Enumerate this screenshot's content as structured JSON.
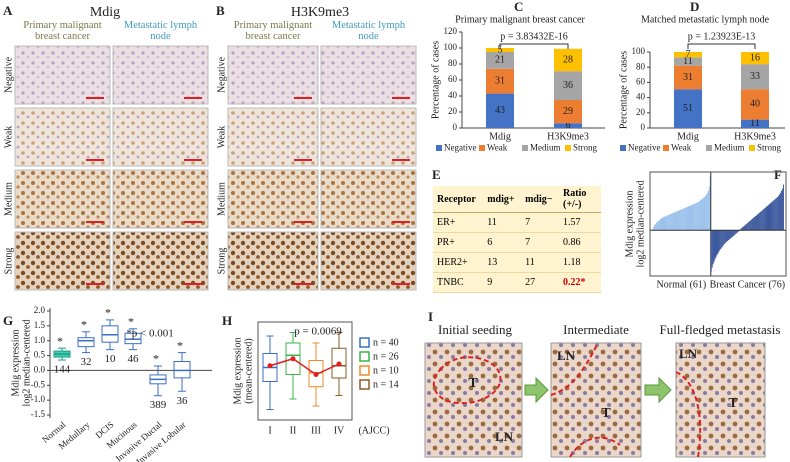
{
  "panel_labels": [
    "A",
    "B",
    "C",
    "D",
    "E",
    "F",
    "G",
    "H",
    "I"
  ],
  "ihc": [
    {
      "title": "Mdig",
      "columns": [
        "Primary malignant breast cancer",
        "Metastatic lymph node"
      ],
      "rows": [
        "Negative",
        "Weak",
        "Medium",
        "Strong"
      ]
    },
    {
      "title": "H3K9me3",
      "columns": [
        "Primary malignant breast cancer",
        "Metastatic lymph node"
      ],
      "rows": [
        "Negative",
        "Weak",
        "Medium",
        "Strong"
      ]
    }
  ],
  "table": {
    "header": [
      "Receptor",
      "mdig+",
      "mdig−",
      "Ratio (+/-)"
    ],
    "rows": [
      [
        "ER+",
        11,
        7,
        1.57
      ],
      [
        "PR+",
        6,
        7,
        0.86
      ],
      [
        "HER2+",
        13,
        11,
        1.18
      ],
      [
        "TNBC",
        9,
        27,
        "0.22*"
      ]
    ]
  },
  "metastasis": {
    "stages": [
      {
        "label": "Initial seeding",
        "regions": [
          "T",
          "LN"
        ]
      },
      {
        "label": "Intermediate",
        "regions": [
          "T",
          "LN"
        ]
      },
      {
        "label": "Full-fledged metastasis",
        "regions": [
          "T",
          "LN"
        ]
      }
    ]
  },
  "chart_data": [
    {
      "type": "stacked_bar",
      "title": "Primary malignant breast cancer",
      "annotation": "p = 3.83432E-16",
      "ylabel": "Percentage of cases",
      "categories": [
        "Mdig",
        "H3K9me3"
      ],
      "series": [
        {
          "name": "Negative",
          "color": "#4472c4",
          "values": [
            43,
            6
          ]
        },
        {
          "name": "Weak",
          "color": "#ed7d31",
          "values": [
            31,
            29
          ]
        },
        {
          "name": "Medium",
          "color": "#a5a5a5",
          "values": [
            21,
            36
          ]
        },
        {
          "name": "Strong",
          "color": "#ffc000",
          "values": [
            5,
            28
          ]
        }
      ],
      "ylim": [
        0,
        120
      ],
      "yticks": [
        0,
        20,
        40,
        60,
        80,
        100,
        120
      ],
      "legend": "bottom"
    },
    {
      "type": "stacked_bar",
      "title": "Matched metastatic lymph node",
      "annotation": "p = 1.23923E-13",
      "ylabel": "Percentage of cases",
      "categories": [
        "Mdig",
        "H3K9me3"
      ],
      "series": [
        {
          "name": "Negative",
          "color": "#4472c4",
          "values": [
            51,
            11
          ]
        },
        {
          "name": "Weak",
          "color": "#ed7d31",
          "values": [
            31,
            40
          ]
        },
        {
          "name": "Medium",
          "color": "#a5a5a5",
          "values": [
            11,
            33
          ]
        },
        {
          "name": "Strong",
          "color": "#ffc000",
          "values": [
            7,
            16
          ]
        }
      ],
      "ylim": [
        0,
        100
      ],
      "yticks": [
        0,
        20,
        40,
        60,
        80,
        100
      ],
      "legend": "bottom"
    },
    {
      "type": "waterfall",
      "ylabel": [
        "Mdig expression",
        "log2 median-centered"
      ],
      "series": [
        {
          "name": "Normal (61)",
          "color": "#8cb8e8",
          "values": [
            0.02,
            0.08,
            0.12,
            0.15,
            0.18,
            0.2,
            0.22,
            0.24,
            0.26,
            0.28,
            0.3,
            0.31,
            0.32,
            0.33,
            0.34,
            0.35,
            0.36,
            0.37,
            0.38,
            0.39,
            0.4,
            0.41,
            0.42,
            0.43,
            0.44,
            0.45,
            0.46,
            0.47,
            0.48,
            0.49,
            0.5,
            0.51,
            0.52,
            0.53,
            0.54,
            0.55,
            0.56,
            0.57,
            0.58,
            0.59,
            0.6,
            0.61,
            0.62,
            0.63,
            0.64,
            0.65,
            0.66,
            0.67,
            0.68,
            0.7,
            0.72,
            0.74,
            0.76,
            0.78,
            0.8,
            0.83,
            0.86,
            0.9,
            0.95,
            1.05,
            1.3
          ]
        },
        {
          "name": "Breast Cancer (76)",
          "color": "#1f3f8f",
          "values": [
            -1.0,
            -0.9,
            -0.82,
            -0.76,
            -0.7,
            -0.65,
            -0.6,
            -0.56,
            -0.52,
            -0.48,
            -0.45,
            -0.42,
            -0.39,
            -0.36,
            -0.33,
            -0.3,
            -0.28,
            -0.26,
            -0.24,
            -0.22,
            -0.2,
            -0.18,
            -0.16,
            -0.14,
            -0.12,
            -0.1,
            -0.08,
            -0.06,
            -0.04,
            -0.02,
            0.02,
            0.04,
            0.06,
            0.08,
            0.1,
            0.12,
            0.14,
            0.16,
            0.18,
            0.2,
            0.22,
            0.24,
            0.26,
            0.28,
            0.3,
            0.32,
            0.34,
            0.36,
            0.38,
            0.4,
            0.42,
            0.44,
            0.46,
            0.48,
            0.5,
            0.52,
            0.54,
            0.56,
            0.58,
            0.6,
            0.62,
            0.64,
            0.66,
            0.68,
            0.7,
            0.72,
            0.74,
            0.76,
            0.78,
            0.8,
            0.83,
            0.86,
            0.9,
            0.95,
            1.0,
            1.1
          ]
        }
      ],
      "ylim": [
        -1.1,
        1.4
      ]
    },
    {
      "type": "box",
      "ylabel": [
        "Mdig expression",
        "log2 median-centered"
      ],
      "annotation": "*p < 0.001",
      "categories": [
        "Normal",
        "Medullary",
        "DCIS",
        "Mucinous",
        "Invasive Ductal",
        "Invasive Lobular"
      ],
      "whisker_low": [
        0.35,
        0.6,
        0.7,
        0.7,
        -0.85,
        -0.7
      ],
      "q1": [
        0.45,
        0.8,
        0.95,
        0.9,
        -0.45,
        -0.25
      ],
      "median": [
        0.55,
        1.0,
        1.2,
        1.05,
        -0.3,
        0.0
      ],
      "q3": [
        0.65,
        1.1,
        1.5,
        1.25,
        -0.15,
        0.3
      ],
      "whisker_high": [
        0.75,
        1.3,
        1.7,
        1.4,
        0.15,
        0.6
      ],
      "n": [
        144,
        32,
        10,
        46,
        389,
        36
      ],
      "markers": [
        "*",
        "*",
        "*",
        "*",
        "*",
        "*"
      ],
      "colors": [
        "#1f9e89",
        "#3b6fc4",
        "#3b6fc4",
        "#3b6fc4",
        "#3b6fc4",
        "#3b6fc4"
      ],
      "fills": [
        "#3fcfb0",
        "#ffffff",
        "#ffffff",
        "#ffffff",
        "#ffffff",
        "#ffffff"
      ],
      "ylim": [
        -1.6,
        2.1
      ],
      "yticks": [
        {
          "value": 2,
          "label": "2.0"
        },
        1.5,
        {
          "value": 1,
          "label": "1.0"
        },
        0.5,
        {
          "value": 0,
          "label": "0.0"
        },
        -0.5,
        {
          "value": -1,
          "label": "-1.0"
        },
        -1.5
      ]
    },
    {
      "type": "box",
      "ylabel": [
        "Mdig expression",
        "(mean-centered)"
      ],
      "annotation": "p = 0.0069",
      "xlabel": "(AJCC)",
      "categories": [
        "I",
        "II",
        "III",
        "IV"
      ],
      "legend": [
        "n = 40",
        "n = 26",
        "n = 10",
        "n = 14"
      ],
      "colors": [
        "#3b6fc4",
        "#3cb44b",
        "#f08a24",
        "#8b5a2b"
      ],
      "fills": [
        "#ffffff",
        "#ffffff",
        "#ffffff",
        "#ffffff"
      ],
      "whisker_low": [
        -1.0,
        -0.7,
        -0.9,
        -0.6
      ],
      "q1": [
        -0.2,
        0.0,
        -0.35,
        -0.1
      ],
      "median": [
        0.2,
        0.55,
        0.05,
        0.25
      ],
      "q3": [
        0.6,
        0.9,
        0.4,
        0.75
      ],
      "whisker_high": [
        1.1,
        1.2,
        0.9,
        1.2
      ],
      "mean": [
        0.25,
        0.45,
        0.0,
        0.3
      ],
      "mean_color": "#e02020",
      "ylim": [
        -1.3,
        1.5
      ]
    }
  ]
}
